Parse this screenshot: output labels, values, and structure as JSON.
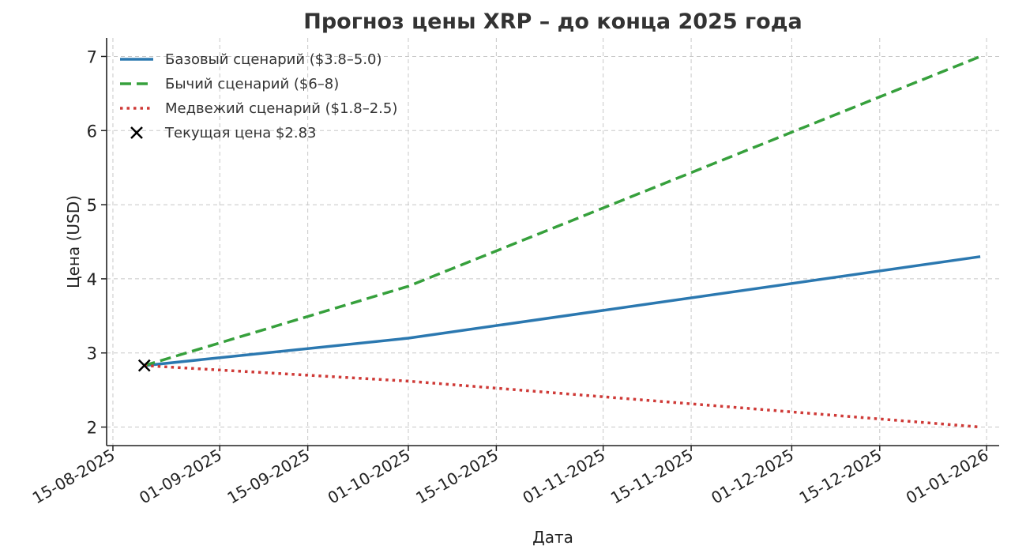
{
  "chart_data": {
    "type": "line",
    "title": "Прогноз цены XRP – до конца 2025 года",
    "xlabel": "Дата",
    "ylabel": "Цена (USD)",
    "x_is_date": true,
    "xlim": [
      "2025-08-14",
      "2026-01-03"
    ],
    "ylim": [
      1.75,
      7.25
    ],
    "yticks": [
      2,
      3,
      4,
      5,
      6,
      7
    ],
    "xticks": [
      {
        "date": "2025-08-15",
        "label": "15-08-2025"
      },
      {
        "date": "2025-09-01",
        "label": "01-09-2025"
      },
      {
        "date": "2025-09-15",
        "label": "15-09-2025"
      },
      {
        "date": "2025-10-01",
        "label": "01-10-2025"
      },
      {
        "date": "2025-10-15",
        "label": "15-10-2025"
      },
      {
        "date": "2025-11-01",
        "label": "01-11-2025"
      },
      {
        "date": "2025-11-15",
        "label": "15-11-2025"
      },
      {
        "date": "2025-12-01",
        "label": "01-12-2025"
      },
      {
        "date": "2025-12-15",
        "label": "15-12-2025"
      },
      {
        "date": "2026-01-01",
        "label": "01-01-2026"
      }
    ],
    "grid": true,
    "legend_position": "top-left",
    "series": [
      {
        "name": "Базовый сценарий ($3.8–5.0)",
        "color": "#2b78b0",
        "style": "solid",
        "points": [
          {
            "x": "2025-08-20",
            "y": 2.83
          },
          {
            "x": "2025-10-01",
            "y": 3.2
          },
          {
            "x": "2025-12-31",
            "y": 4.3
          }
        ]
      },
      {
        "name": "Бычий сценарий ($6–8)",
        "color": "#36a03c",
        "style": "dashed",
        "points": [
          {
            "x": "2025-08-20",
            "y": 2.83
          },
          {
            "x": "2025-10-01",
            "y": 3.9
          },
          {
            "x": "2025-12-31",
            "y": 7.0
          }
        ]
      },
      {
        "name": "Медвежий сценарий ($1.8–2.5)",
        "color": "#cf3a37",
        "style": "dotted",
        "points": [
          {
            "x": "2025-08-20",
            "y": 2.83
          },
          {
            "x": "2025-10-01",
            "y": 2.62
          },
          {
            "x": "2025-12-31",
            "y": 2.0
          }
        ]
      }
    ],
    "markers": [
      {
        "name": "Текущая цена $2.83",
        "x": "2025-08-20",
        "y": 2.83,
        "symbol": "x",
        "color": "#000000"
      }
    ]
  }
}
